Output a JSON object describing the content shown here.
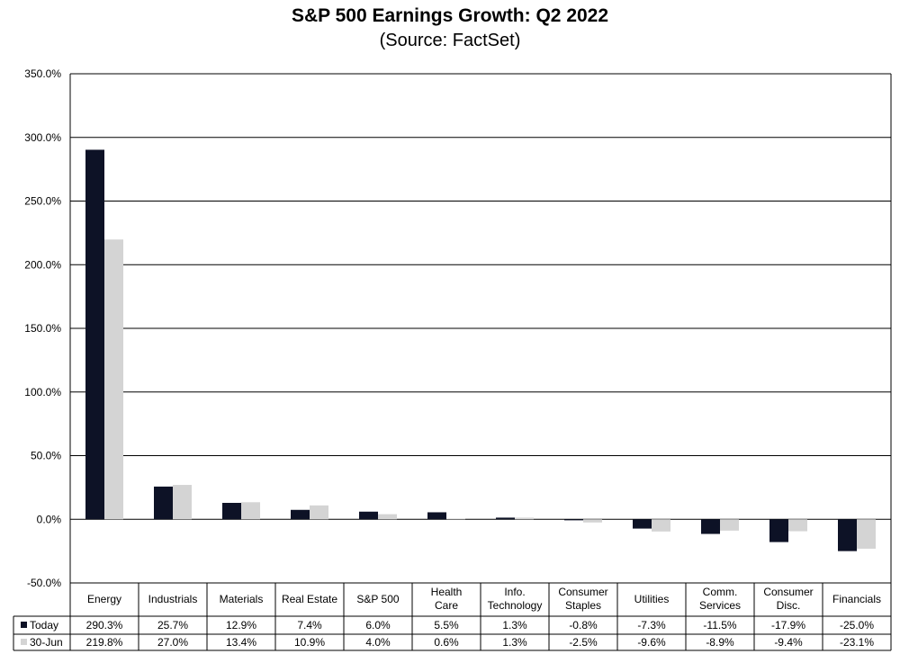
{
  "chart_data": {
    "type": "bar",
    "title": "S&P 500 Earnings Growth: Q2 2022",
    "subtitle": "(Source: FactSet)",
    "categories": [
      [
        "Energy"
      ],
      [
        "Industrials"
      ],
      [
        "Materials"
      ],
      [
        "Real Estate"
      ],
      [
        "S&P 500"
      ],
      [
        "Health",
        "Care"
      ],
      [
        "Info.",
        "Technology"
      ],
      [
        "Consumer",
        "Staples"
      ],
      [
        "Utilities"
      ],
      [
        "Comm.",
        "Services"
      ],
      [
        "Consumer",
        "Disc."
      ],
      [
        "Financials"
      ]
    ],
    "series": [
      {
        "name": "Today",
        "color": "#0d1226",
        "values": [
          290.3,
          25.7,
          12.9,
          7.4,
          6.0,
          5.5,
          1.3,
          -0.8,
          -7.3,
          -11.5,
          -17.9,
          -25.0
        ],
        "labels": [
          "290.3%",
          "25.7%",
          "12.9%",
          "7.4%",
          "6.0%",
          "5.5%",
          "1.3%",
          "-0.8%",
          "-7.3%",
          "-11.5%",
          "-17.9%",
          "-25.0%"
        ]
      },
      {
        "name": "30-Jun",
        "color": "#d4d4d4",
        "values": [
          219.8,
          27.0,
          13.4,
          10.9,
          4.0,
          0.6,
          1.3,
          -2.5,
          -9.6,
          -8.9,
          -9.4,
          -23.1
        ],
        "labels": [
          "219.8%",
          "27.0%",
          "13.4%",
          "10.9%",
          "4.0%",
          "0.6%",
          "1.3%",
          "-2.5%",
          "-9.6%",
          "-8.9%",
          "-9.4%",
          "-23.1%"
        ]
      }
    ],
    "ylim": [
      -50,
      350
    ],
    "yticks": [
      "-50.0%",
      "0.0%",
      "50.0%",
      "100.0%",
      "150.0%",
      "200.0%",
      "250.0%",
      "300.0%",
      "350.0%"
    ],
    "grid": true,
    "legend": "data-table"
  }
}
